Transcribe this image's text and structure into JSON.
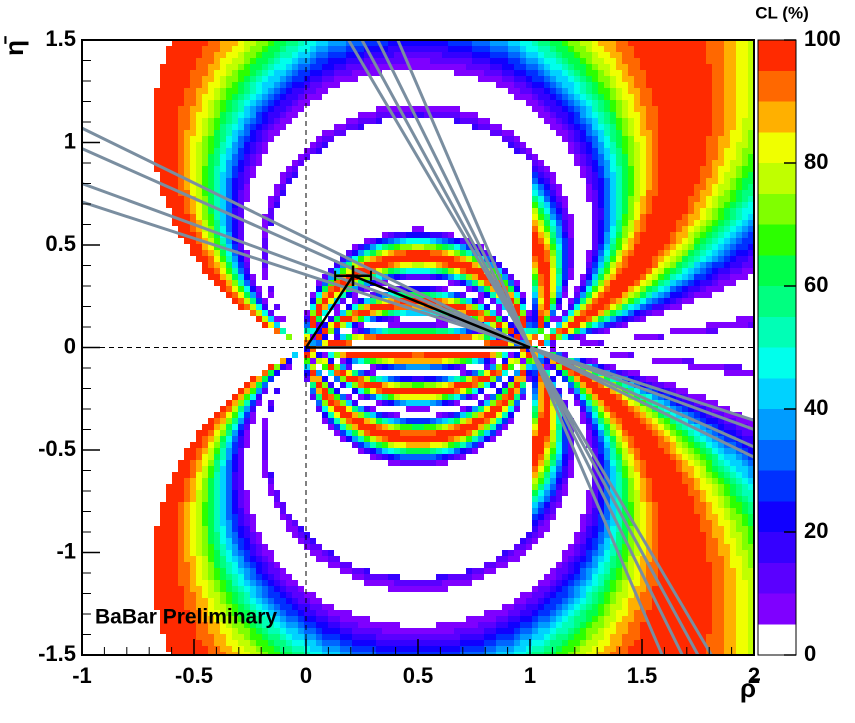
{
  "chart_data": {
    "type": "contour",
    "xlabel": "ρ̄",
    "ylabel": "η̄",
    "annotation": "BaBar Preliminary",
    "xlim": [
      -1,
      2
    ],
    "ylim": [
      -1.5,
      1.5
    ],
    "xticks": [
      -1,
      -0.5,
      0,
      0.5,
      1,
      1.5,
      2
    ],
    "yticks": [
      -1.5,
      -1,
      -0.5,
      0,
      0.5,
      1,
      1.5
    ],
    "colorbar": {
      "title": "CL (%)",
      "zlim": [
        0,
        100
      ],
      "zticks": [
        0,
        20,
        40,
        60,
        80,
        100
      ],
      "colors": [
        "#7f00ff",
        "#5a00ff",
        "#3500ff",
        "#1000ff",
        "#0030ff",
        "#0066ff",
        "#009cff",
        "#00d2ff",
        "#00ffec",
        "#00ffb6",
        "#00ff80",
        "#00ff4a",
        "#2cff00",
        "#80ff00",
        "#c0ff00",
        "#f0ff00",
        "#ffb000",
        "#ff6800",
        "#ff2a00"
      ]
    },
    "triangle": {
      "x": [
        0,
        0.21,
        1,
        0
      ],
      "y": [
        0,
        0.35,
        0,
        0
      ],
      "color": "#000000"
    },
    "apex": {
      "x": 0.21,
      "y": 0.35,
      "xerr": 0.08,
      "yerr": 0.05,
      "color": "#000000"
    },
    "lines_color": "#7a8ea0",
    "lines": [
      {
        "x": [
          -1,
          2
        ],
        "y": [
          1.07,
          -0.535
        ]
      },
      {
        "x": [
          -1,
          2
        ],
        "y": [
          0.97,
          -0.485
        ]
      },
      {
        "x": [
          -1,
          2
        ],
        "y": [
          0.8,
          -0.4
        ]
      },
      {
        "x": [
          -1,
          2
        ],
        "y": [
          0.71,
          -0.355
        ]
      },
      {
        "x": [
          0.19,
          1.81
        ],
        "y": [
          1.5,
          -1.5
        ]
      },
      {
        "x": [
          0.25,
          1.75
        ],
        "y": [
          1.5,
          -1.5
        ]
      },
      {
        "x": [
          0.32,
          1.68
        ],
        "y": [
          1.5,
          -1.5
        ]
      },
      {
        "x": [
          0.41,
          1.59
        ],
        "y": [
          1.5,
          -1.5
        ]
      }
    ],
    "zero_lines": true
  }
}
